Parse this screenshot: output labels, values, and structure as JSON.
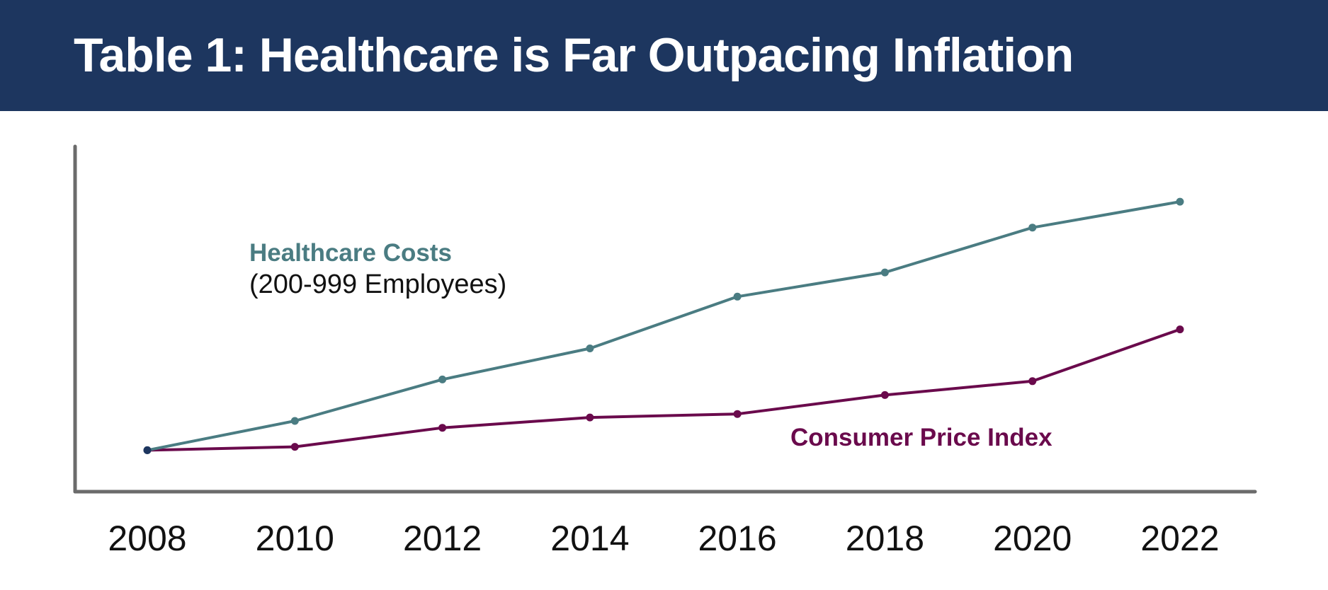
{
  "chart_data": {
    "type": "line",
    "title": "Table 1: Healthcare is Far Outpacing Inflation",
    "xlabel": "",
    "ylabel": "",
    "categories": [
      "2008",
      "2010",
      "2012",
      "2014",
      "2016",
      "2018",
      "2020",
      "2022"
    ],
    "ylim": [
      0,
      100
    ],
    "grid": false,
    "series": [
      {
        "name": "Healthcare Costs",
        "subtitle": "(200-999 Employees)",
        "color": "#4a7c82",
        "values": [
          12,
          20.5,
          32.5,
          41.5,
          56.5,
          63.5,
          76.5,
          84
        ]
      },
      {
        "name": "Consumer Price Index",
        "color": "#6a0a4c",
        "values": [
          12,
          13,
          18.5,
          21.5,
          22.5,
          28,
          32,
          47
        ]
      }
    ],
    "start_point_color": "#1d365f"
  }
}
